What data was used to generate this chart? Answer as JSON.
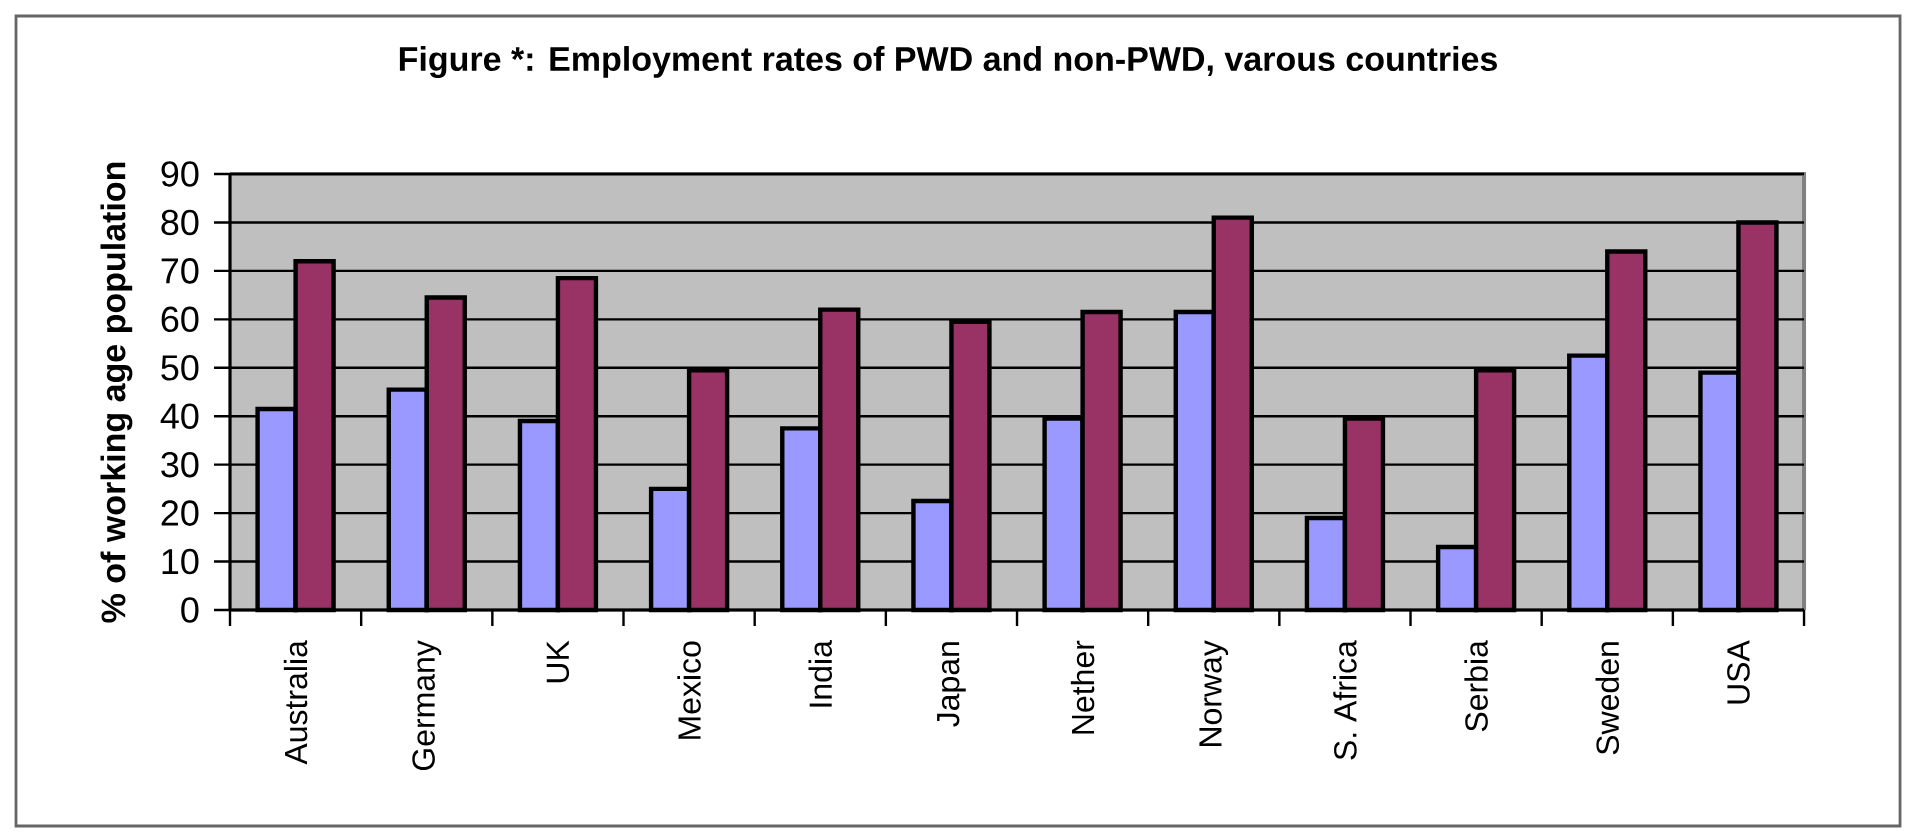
{
  "chart_data": {
    "type": "bar",
    "title": "Figure *: Employment rates of PWD and non-PWD, varous countries",
    "ylabel": "% of working age population",
    "categories": [
      "Australia",
      "Germany",
      "UK",
      "Mexico",
      "India",
      "Japan",
      "Nether",
      "Norway",
      "S. Africa",
      "Serbia",
      "Sweden",
      "USA"
    ],
    "series": [
      {
        "color": "#9999ff",
        "values": [
          41.5,
          45.5,
          39,
          25,
          37.5,
          22.5,
          39.5,
          61.5,
          19,
          13,
          52.5,
          49
        ]
      },
      {
        "color": "#993366",
        "values": [
          72,
          64.5,
          68.5,
          49.5,
          62,
          59.5,
          61.5,
          81,
          39.5,
          49.5,
          74,
          80
        ]
      }
    ],
    "ylim": [
      0,
      90
    ],
    "yticks": [
      0,
      10,
      20,
      30,
      40,
      50,
      60,
      70,
      80,
      90
    ],
    "grid": "y"
  }
}
